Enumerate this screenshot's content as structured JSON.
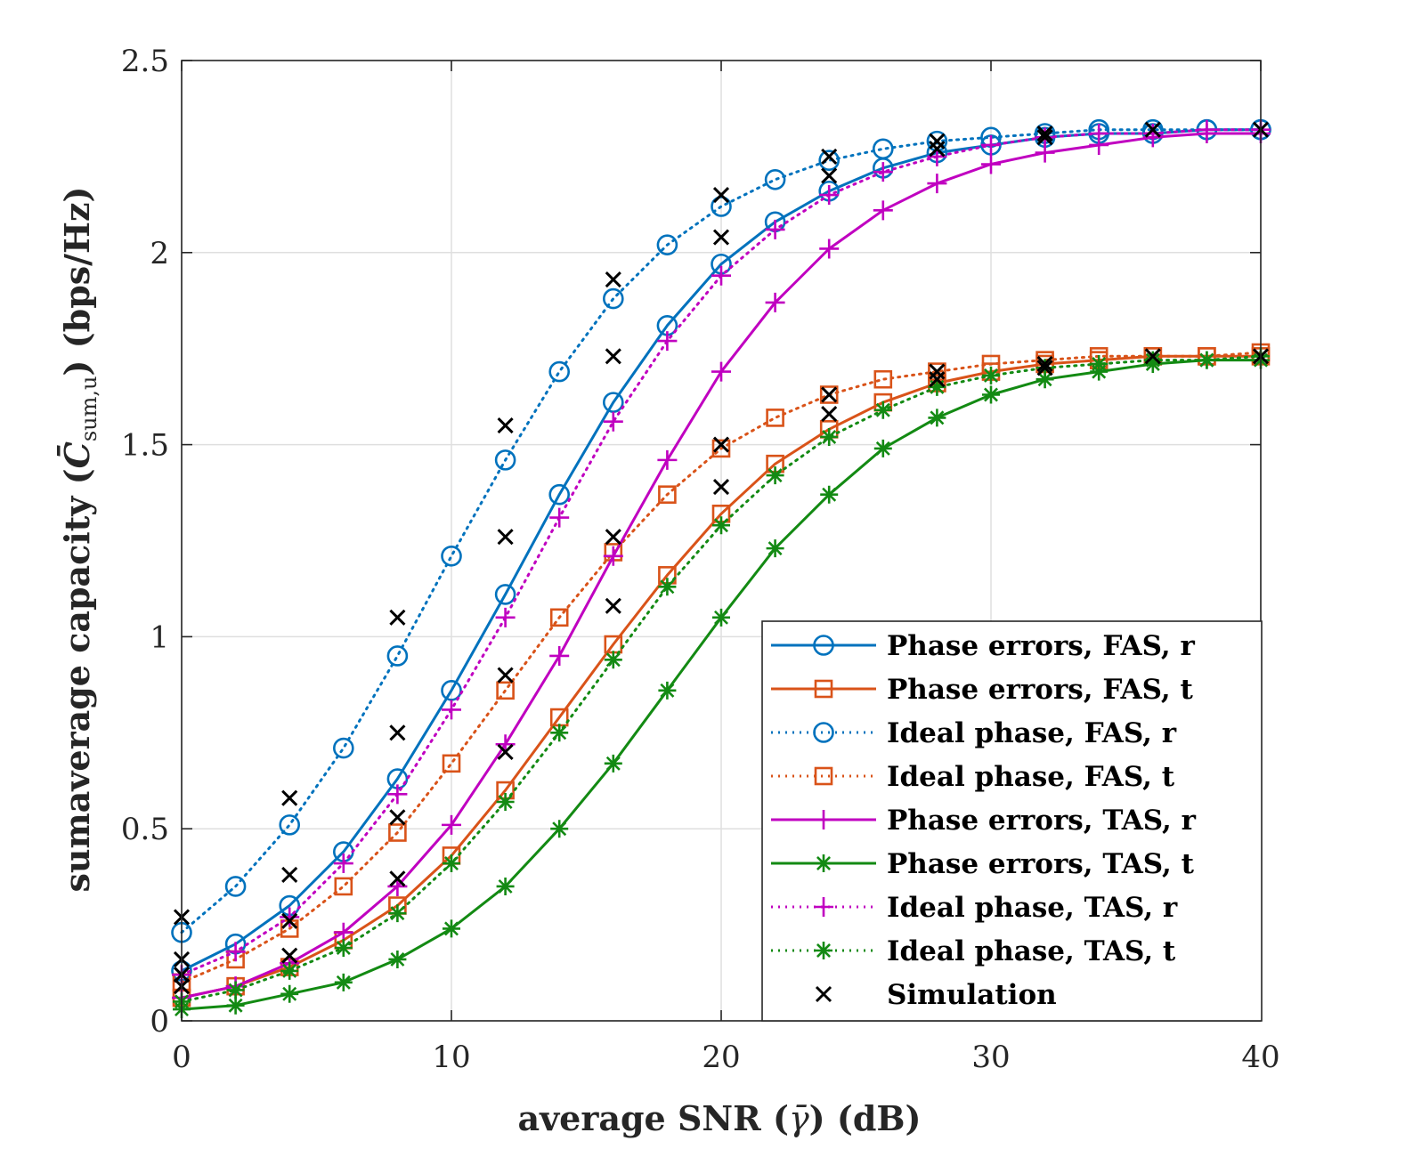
{
  "chart_data": {
    "type": "line",
    "title": "",
    "xlabel": {
      "pre": "average SNR (",
      "symbol": "γ̄",
      "post": ") (dB)"
    },
    "ylabel": {
      "pre": "sumaverage capacity (",
      "symbol": "C̄",
      "sub": "sum,u",
      "post": ") (bps/Hz)"
    },
    "xlim": [
      0,
      40
    ],
    "ylim": [
      0,
      2.5
    ],
    "xticks": [
      0,
      10,
      20,
      30,
      40
    ],
    "yticks": [
      0,
      0.5,
      1,
      1.5,
      2,
      2.5
    ],
    "xtick_labels": [
      "0",
      "10",
      "20",
      "30",
      "40"
    ],
    "ytick_labels": [
      "0",
      "0.5",
      "1",
      "1.5",
      "2",
      "2.5"
    ],
    "grid": true,
    "legend_position": "bottom-right",
    "x": [
      0,
      2,
      4,
      6,
      8,
      10,
      12,
      14,
      16,
      18,
      20,
      22,
      24,
      26,
      28,
      30,
      32,
      34,
      36,
      38,
      40
    ],
    "series": [
      {
        "name": "Phase errors, FAS, r",
        "color": "#0072BD",
        "dash": "solid",
        "marker": "circle",
        "values": [
          0.13,
          0.2,
          0.3,
          0.44,
          0.63,
          0.86,
          1.11,
          1.37,
          1.61,
          1.81,
          1.97,
          2.08,
          2.16,
          2.22,
          2.26,
          2.28,
          2.3,
          2.31,
          2.31,
          2.32,
          2.32
        ]
      },
      {
        "name": "Phase errors, FAS, t",
        "color": "#D95319",
        "dash": "solid",
        "marker": "square",
        "values": [
          0.06,
          0.09,
          0.14,
          0.21,
          0.3,
          0.43,
          0.6,
          0.79,
          0.98,
          1.16,
          1.32,
          1.45,
          1.54,
          1.61,
          1.66,
          1.69,
          1.71,
          1.72,
          1.73,
          1.73,
          1.73
        ]
      },
      {
        "name": "Ideal phase, FAS, r",
        "color": "#0072BD",
        "dash": "dotted",
        "marker": "circle",
        "values": [
          0.23,
          0.35,
          0.51,
          0.71,
          0.95,
          1.21,
          1.46,
          1.69,
          1.88,
          2.02,
          2.12,
          2.19,
          2.24,
          2.27,
          2.29,
          2.3,
          2.31,
          2.32,
          2.32,
          2.32,
          2.32
        ]
      },
      {
        "name": "Ideal phase, FAS, t",
        "color": "#D95319",
        "dash": "dotted",
        "marker": "square",
        "values": [
          0.1,
          0.16,
          0.24,
          0.35,
          0.49,
          0.67,
          0.86,
          1.05,
          1.22,
          1.37,
          1.49,
          1.57,
          1.63,
          1.67,
          1.69,
          1.71,
          1.72,
          1.73,
          1.73,
          1.73,
          1.74
        ]
      },
      {
        "name": "Phase errors, TAS, r",
        "color": "#C000C0",
        "dash": "solid",
        "marker": "plus",
        "values": [
          0.06,
          0.09,
          0.15,
          0.23,
          0.35,
          0.51,
          0.72,
          0.95,
          1.21,
          1.46,
          1.69,
          1.87,
          2.01,
          2.11,
          2.18,
          2.23,
          2.26,
          2.28,
          2.3,
          2.31,
          2.31
        ]
      },
      {
        "name": "Phase errors, TAS, t",
        "color": "#138A13",
        "dash": "solid",
        "marker": "asterisk",
        "values": [
          0.03,
          0.04,
          0.07,
          0.1,
          0.16,
          0.24,
          0.35,
          0.5,
          0.67,
          0.86,
          1.05,
          1.23,
          1.37,
          1.49,
          1.57,
          1.63,
          1.67,
          1.69,
          1.71,
          1.72,
          1.72
        ]
      },
      {
        "name": "Ideal phase, TAS, r",
        "color": "#C000C0",
        "dash": "dotted",
        "marker": "plus",
        "values": [
          0.12,
          0.18,
          0.27,
          0.41,
          0.59,
          0.81,
          1.05,
          1.31,
          1.56,
          1.77,
          1.94,
          2.06,
          2.15,
          2.21,
          2.25,
          2.28,
          2.3,
          2.31,
          2.31,
          2.32,
          2.32
        ]
      },
      {
        "name": "Ideal phase, TAS, t",
        "color": "#138A13",
        "dash": "dotted",
        "marker": "asterisk",
        "values": [
          0.05,
          0.08,
          0.13,
          0.19,
          0.28,
          0.41,
          0.57,
          0.75,
          0.94,
          1.13,
          1.29,
          1.42,
          1.52,
          1.59,
          1.65,
          1.68,
          1.7,
          1.71,
          1.72,
          1.72,
          1.73
        ]
      }
    ],
    "simulation": {
      "name": "Simulation",
      "color": "#000000",
      "marker": "x",
      "points": [
        [
          0,
          0.27
        ],
        [
          0,
          0.16
        ],
        [
          0,
          0.12
        ],
        [
          0,
          0.09
        ],
        [
          4,
          0.58
        ],
        [
          4,
          0.38
        ],
        [
          4,
          0.26
        ],
        [
          4,
          0.17
        ],
        [
          8,
          1.05
        ],
        [
          8,
          0.75
        ],
        [
          8,
          0.53
        ],
        [
          8,
          0.37
        ],
        [
          12,
          1.55
        ],
        [
          12,
          1.26
        ],
        [
          12,
          0.9
        ],
        [
          12,
          0.7
        ],
        [
          16,
          1.93
        ],
        [
          16,
          1.73
        ],
        [
          16,
          1.26
        ],
        [
          16,
          1.08
        ],
        [
          20,
          2.15
        ],
        [
          20,
          2.04
        ],
        [
          20,
          1.5
        ],
        [
          20,
          1.39
        ],
        [
          24,
          2.25
        ],
        [
          24,
          2.2
        ],
        [
          24,
          1.63
        ],
        [
          24,
          1.58
        ],
        [
          28,
          2.29
        ],
        [
          28,
          2.27
        ],
        [
          28,
          1.69
        ],
        [
          28,
          1.67
        ],
        [
          32,
          2.31
        ],
        [
          32,
          2.3
        ],
        [
          32,
          1.71
        ],
        [
          32,
          1.7
        ],
        [
          36,
          2.32
        ],
        [
          36,
          1.73
        ],
        [
          40,
          2.32
        ],
        [
          40,
          1.73
        ]
      ]
    }
  }
}
